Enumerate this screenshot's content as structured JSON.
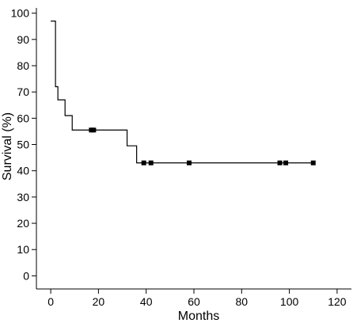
{
  "chart_data": {
    "type": "line",
    "step": true,
    "xlabel": "Months",
    "ylabel": "Survival (%)",
    "xlim": [
      -6,
      126
    ],
    "ylim": [
      -5,
      102
    ],
    "x_ticks": [
      0,
      20,
      40,
      60,
      80,
      100,
      120
    ],
    "y_ticks": [
      0,
      10,
      20,
      30,
      40,
      50,
      60,
      70,
      80,
      90,
      100
    ],
    "grid": false,
    "legend": "none",
    "series": [
      {
        "x": [
          0,
          1,
          2,
          3,
          5,
          6,
          9,
          32,
          36,
          110
        ],
        "y": [
          97,
          97,
          72,
          67,
          67,
          61,
          55.5,
          49.5,
          43,
          43
        ]
      }
    ],
    "censored": {
      "x": [
        17,
        18,
        39,
        42,
        58,
        96,
        98.5,
        110
      ],
      "y": [
        55.5,
        55.5,
        43,
        43,
        43,
        43,
        43,
        43
      ]
    },
    "line_color": "#000000"
  }
}
